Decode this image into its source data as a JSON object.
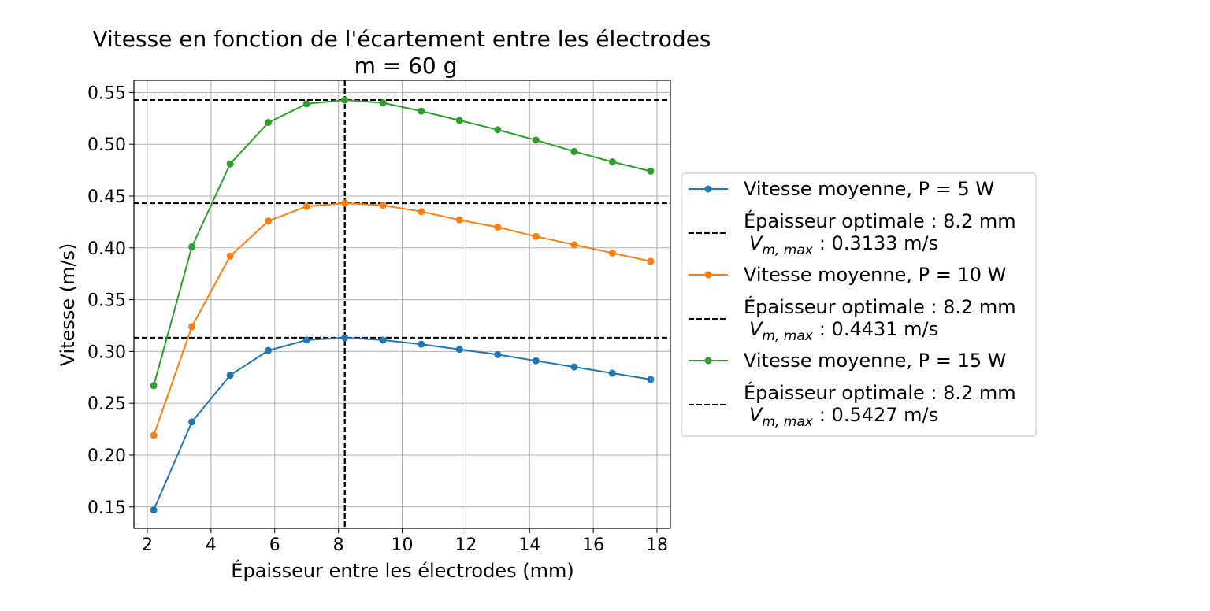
{
  "chart_data": {
    "type": "line",
    "title": "Vitesse en fonction de l'écartement entre les électrodes",
    "subtitle": "m = 60 g",
    "xlabel": "Épaisseur entre les électrodes (mm)",
    "ylabel": "Vitesse (m/s)",
    "xlim": [
      1.58,
      18.42
    ],
    "ylim": [
      0.1293,
      0.5617
    ],
    "xticks": [
      2,
      4,
      6,
      8,
      10,
      12,
      14,
      16,
      18
    ],
    "yticks": [
      0.15,
      0.2,
      0.25,
      0.3,
      0.35,
      0.4,
      0.45,
      0.5,
      0.55
    ],
    "ytick_labels": [
      "0.15",
      "0.20",
      "0.25",
      "0.30",
      "0.35",
      "0.40",
      "0.45",
      "0.50",
      "0.55"
    ],
    "grid": true,
    "legend_position": "right, outside the plot",
    "x": [
      2.2,
      3.4,
      4.6,
      5.8,
      7.0,
      8.2,
      9.4,
      10.6,
      11.8,
      13.0,
      14.2,
      15.4,
      16.6,
      17.8
    ],
    "series": [
      {
        "name": "Vitesse moyenne, P = 5 W",
        "color": "#1f77b4",
        "values": [
          0.147,
          0.232,
          0.277,
          0.301,
          0.311,
          0.3133,
          0.311,
          0.307,
          0.302,
          0.297,
          0.291,
          0.285,
          0.279,
          0.273
        ],
        "optimum_x": 8.2,
        "optimum_y": 0.3133,
        "optimum_label_line1": "Épaisseur optimale : 8.2 mm",
        "optimum_label_value": ": 0.3133 m/s"
      },
      {
        "name": "Vitesse moyenne, P = 10 W",
        "color": "#ff7f0e",
        "values": [
          0.219,
          0.324,
          0.392,
          0.426,
          0.44,
          0.4431,
          0.441,
          0.435,
          0.427,
          0.42,
          0.411,
          0.403,
          0.395,
          0.387
        ],
        "optimum_x": 8.2,
        "optimum_y": 0.4431,
        "optimum_label_line1": "Épaisseur optimale : 8.2 mm",
        "optimum_label_value": ": 0.4431 m/s"
      },
      {
        "name": "Vitesse moyenne, P = 15 W",
        "color": "#2ca02c",
        "values": [
          0.267,
          0.401,
          0.481,
          0.521,
          0.539,
          0.5427,
          0.54,
          0.532,
          0.523,
          0.514,
          0.504,
          0.493,
          0.483,
          0.474
        ],
        "optimum_x": 8.2,
        "optimum_y": 0.5427,
        "optimum_label_line1": "Épaisseur optimale : 8.2 mm",
        "optimum_label_value": ": 0.5427 m/s"
      }
    ],
    "optimum_symbol": "V",
    "optimum_symbol_subscript": "m, max"
  }
}
